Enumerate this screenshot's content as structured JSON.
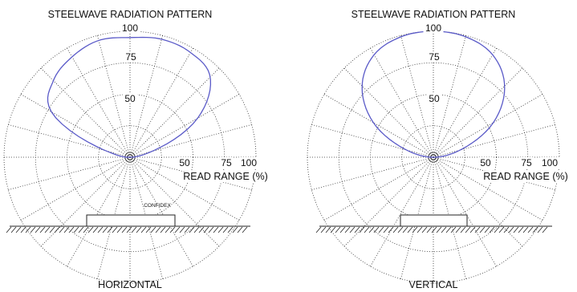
{
  "chart_data": [
    {
      "type": "polar",
      "title": "STEELWAVE RADIATION PATTERN",
      "bottom_label": "HORIZONTAL",
      "radial_axis_label": "READ RANGE (%)",
      "radial_ticks": [
        "50",
        "75",
        "100"
      ],
      "rlim": [
        0,
        100
      ],
      "grid": true,
      "angle_deg": [
        0,
        15,
        30,
        45,
        60,
        75,
        90,
        105,
        120,
        135,
        150,
        165,
        180
      ],
      "read_range_pct": [
        2,
        18,
        62,
        90,
        96,
        97,
        95,
        96,
        92,
        86,
        72,
        20,
        3
      ],
      "tag_label": "CONFIDEX"
    },
    {
      "type": "polar",
      "title": "STEELWAVE RADIATION PATTERN",
      "bottom_label": "VERTICAL",
      "radial_axis_label": "READ RANGE (%)",
      "radial_ticks": [
        "50",
        "75",
        "100"
      ],
      "rlim": [
        0,
        100
      ],
      "grid": true,
      "angle_deg": [
        0,
        15,
        30,
        45,
        60,
        75,
        90,
        105,
        120,
        135,
        150,
        165,
        180
      ],
      "read_range_pct": [
        2,
        22,
        55,
        80,
        94,
        99,
        100,
        99,
        94,
        80,
        55,
        22,
        2
      ]
    }
  ],
  "colors": {
    "pattern": "#5a5ac8",
    "grid": "#333333",
    "text": "#111111"
  }
}
